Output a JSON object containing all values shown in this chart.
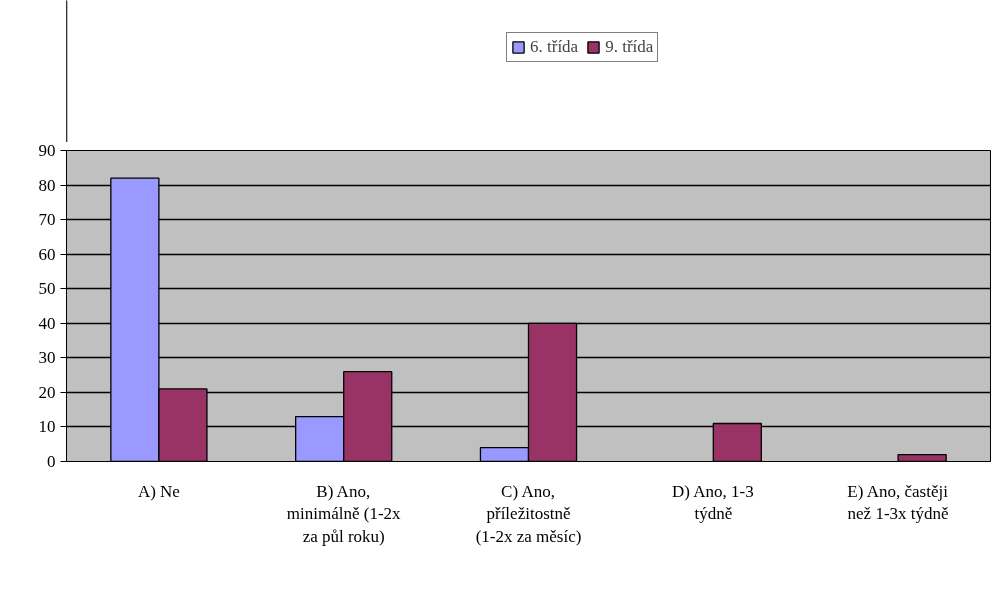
{
  "chart_data": {
    "type": "bar",
    "categories": [
      "A) Ne",
      "B) Ano, minimálně (1-2x za půl roku)",
      "C) Ano, příležitostně (1-2x za měsíc)",
      "D) Ano, 1-3 týdně",
      "E) Ano, častěji než 1-3x týdně"
    ],
    "series": [
      {
        "name": "6. třída",
        "color": "#9999ff",
        "values": [
          82,
          13,
          4,
          0,
          0
        ]
      },
      {
        "name": "9. třída",
        "color": "#993366",
        "values": [
          21,
          26,
          40,
          11,
          2
        ]
      }
    ],
    "ylim": [
      0,
      90
    ],
    "yticks": [
      0,
      10,
      20,
      30,
      40,
      50,
      60,
      70,
      80,
      90
    ],
    "grid": "y",
    "legend": "top"
  }
}
